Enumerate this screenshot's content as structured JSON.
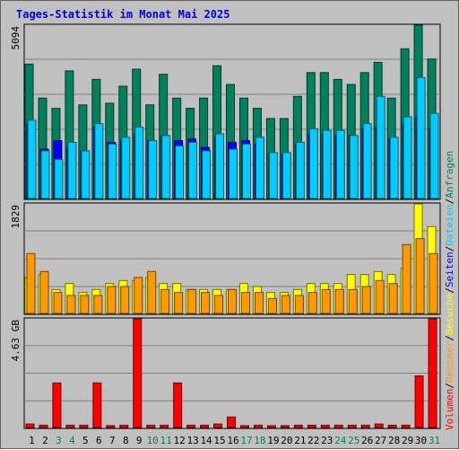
{
  "chart_data": {
    "type": "bar",
    "title": "Tages-Statistik im Monat Mai 2025",
    "categories": [
      "1",
      "2",
      "3",
      "4",
      "5",
      "6",
      "7",
      "8",
      "9",
      "10",
      "11",
      "12",
      "13",
      "14",
      "15",
      "16",
      "17",
      "18",
      "19",
      "20",
      "21",
      "22",
      "23",
      "24",
      "25",
      "26",
      "27",
      "28",
      "29",
      "30",
      "31"
    ],
    "weekend_days": [
      "3",
      "4",
      "10",
      "11",
      "17",
      "18",
      "24",
      "25",
      "31"
    ],
    "panels": {
      "top": {
        "max_label": "5094",
        "ylim": [
          0,
          5094
        ],
        "series": [
          {
            "name": "Anfragen",
            "color": "#00805c",
            "values": [
              3950,
              2950,
              2650,
              3750,
              2750,
              3500,
              2800,
              3300,
              3800,
              2750,
              3650,
              2950,
              2650,
              2950,
              3900,
              3350,
              2950,
              2650,
              2350,
              2350,
              3000,
              3700,
              3700,
              3500,
              3350,
              3700,
              4000,
              2950,
              4400,
              5094,
              4100
            ]
          },
          {
            "name": "Seiten",
            "color": "#0000ff",
            "values": [
              2200,
              1450,
              1700,
              1500,
              1400,
              2100,
              1650,
              1700,
              1900,
              1700,
              1850,
              1700,
              1750,
              1500,
              1800,
              1650,
              1700,
              1600,
              1300,
              1300,
              1600,
              1900,
              1900,
              1850,
              1850,
              2050,
              2100,
              1750,
              2200,
              2400,
              2050
            ]
          },
          {
            "name": "Dateien",
            "color": "#00ccff",
            "values": [
              2300,
              1400,
              1150,
              1650,
              1400,
              2200,
              1600,
              1800,
              2100,
              1700,
              1850,
              1550,
              1650,
              1400,
              1900,
              1450,
              1600,
              1800,
              1350,
              1350,
              1650,
              2050,
              2000,
              2000,
              1850,
              2200,
              3000,
              1800,
              2400,
              3550,
              2500
            ]
          }
        ]
      },
      "middle": {
        "max_label": "1829",
        "ylim": [
          0,
          1829
        ],
        "series": [
          {
            "name": "Besuche",
            "color": "#ffff00",
            "values": [
              600,
              650,
              400,
              500,
              350,
              400,
              500,
              550,
              550,
              600,
              500,
              500,
              400,
              400,
              400,
              400,
              500,
              450,
              350,
              350,
              400,
              500,
              500,
              500,
              650,
              650,
              700,
              650,
              750,
              1829,
              1450
            ]
          },
          {
            "name": "Rechner",
            "color": "#ff9900",
            "values": [
              1000,
              700,
              350,
              300,
              300,
              300,
              450,
              450,
              600,
              700,
              400,
              350,
              400,
              350,
              300,
              400,
              350,
              350,
              250,
              300,
              300,
              350,
              400,
              400,
              400,
              450,
              550,
              500,
              1150,
              1250,
              1000
            ]
          }
        ]
      },
      "bottom": {
        "max_label": "4.63 GB",
        "ylim": [
          0,
          4.63
        ],
        "series": [
          {
            "name": "Volumen",
            "color": "#ff0000",
            "values": [
              0.15,
              0.1,
              1.9,
              0.1,
              0.1,
              1.9,
              0.08,
              0.1,
              4.63,
              0.1,
              0.1,
              1.9,
              0.1,
              0.1,
              0.15,
              0.45,
              0.08,
              0.1,
              0.08,
              0.08,
              0.1,
              0.1,
              0.1,
              0.1,
              0.1,
              0.1,
              0.15,
              0.1,
              0.1,
              2.2,
              4.63
            ]
          }
        ]
      }
    },
    "legend": [
      "Volumen",
      "Rechner",
      "Besuche",
      "Seiten",
      "Dateien",
      "Anfragen"
    ],
    "grid": true,
    "legend_placement": "right-vertical"
  }
}
